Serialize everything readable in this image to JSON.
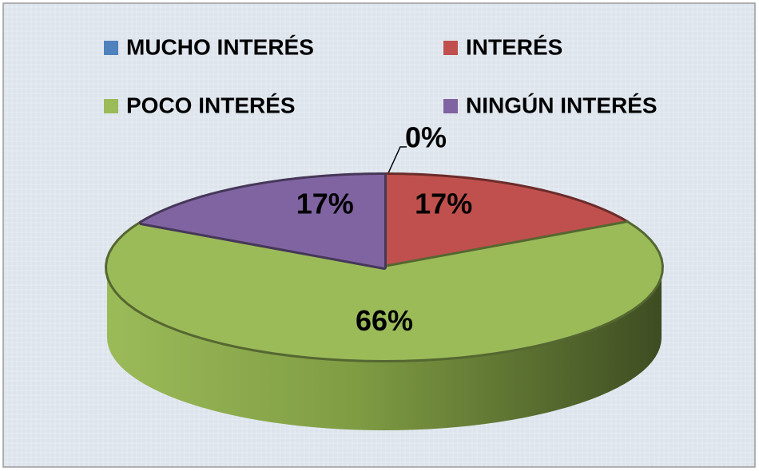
{
  "chart_data": {
    "type": "pie",
    "categories": [
      "MUCHO INTERÉS",
      "INTERÉS",
      "POCO INTERÉS",
      "NINGÚN INTERÉS"
    ],
    "values": [
      0,
      17,
      66,
      17
    ],
    "value_labels": [
      "0%",
      "17%",
      "66%",
      "17%"
    ],
    "colors": [
      "#4f81bd",
      "#c0504d",
      "#9bbb59",
      "#8064a2"
    ],
    "legend": "top"
  }
}
